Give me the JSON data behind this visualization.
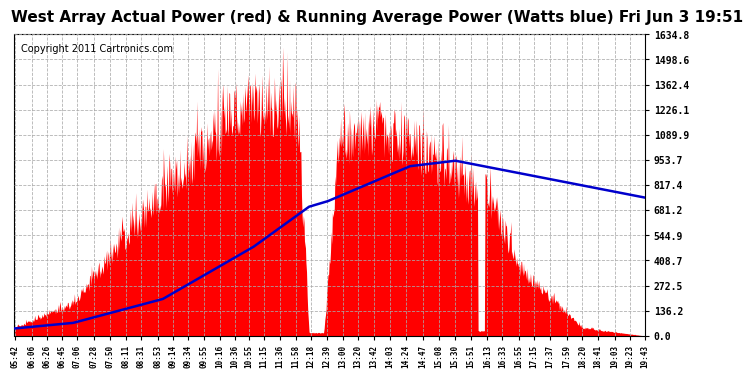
{
  "title": "West Array Actual Power (red) & Running Average Power (Watts blue) Fri Jun 3 19:51",
  "copyright": "Copyright 2011 Cartronics.com",
  "y_max": 1634.8,
  "y_min": 0.0,
  "y_ticks": [
    0.0,
    136.2,
    272.5,
    408.7,
    544.9,
    681.2,
    817.4,
    953.7,
    1089.9,
    1226.1,
    1362.4,
    1498.6,
    1634.8
  ],
  "x_labels": [
    "05:42",
    "06:06",
    "06:26",
    "06:45",
    "07:06",
    "07:28",
    "07:50",
    "08:11",
    "08:31",
    "08:53",
    "09:14",
    "09:34",
    "09:55",
    "10:16",
    "10:36",
    "10:55",
    "11:15",
    "11:36",
    "11:58",
    "12:18",
    "12:39",
    "13:00",
    "13:20",
    "13:42",
    "14:03",
    "14:24",
    "14:47",
    "15:08",
    "15:30",
    "15:51",
    "16:13",
    "16:33",
    "16:55",
    "17:15",
    "17:37",
    "17:59",
    "18:20",
    "18:41",
    "19:03",
    "19:23",
    "19:43"
  ],
  "bg_color": "#ffffff",
  "plot_bg_color": "#ffffff",
  "grid_color": "#aaaaaa",
  "actual_color": "#ff0000",
  "avg_color": "#0000cc",
  "title_fontsize": 11,
  "copyright_fontsize": 7
}
